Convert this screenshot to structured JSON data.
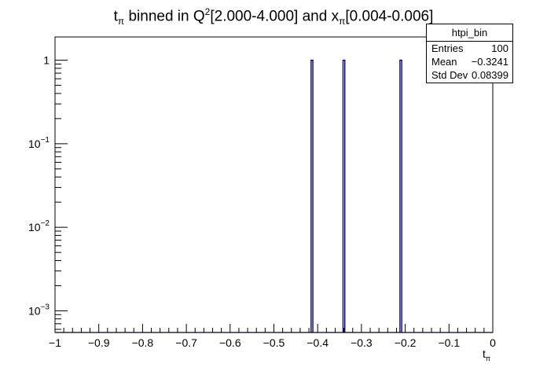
{
  "title": {
    "var": "t",
    "var_sub": "π",
    "mid": " binned in Q",
    "mid_sup": "2",
    "range1": "[2.000-4.000] and x",
    "x_sub": "π",
    "range2": "[0.004-0.006]"
  },
  "stats": {
    "name": "htpi_bin",
    "rows": [
      {
        "label": "Entries",
        "value": "100"
      },
      {
        "label": "Mean",
        "value": "−0.3241"
      },
      {
        "label": "Std Dev",
        "value": "0.08399"
      }
    ]
  },
  "xlabel": {
    "var": "t",
    "sub": "π"
  },
  "chart_data": {
    "type": "bar",
    "title": "t_π binned in Q^2[2.000-4.000] and x_π[0.004-0.006]",
    "xlabel": "t_π",
    "ylabel": "",
    "xlim": [
      -1,
      0
    ],
    "ylim": [
      0.00055,
      1.9
    ],
    "yscale": "log",
    "grid": false,
    "legend": "top-right",
    "colors": {
      "line": "#000080",
      "frame": "#000000"
    },
    "x_ticks": [
      "−1",
      "−0.9",
      "−0.8",
      "−0.7",
      "−0.6",
      "−0.5",
      "−0.4",
      "−0.3",
      "−0.2",
      "−0.1",
      "0"
    ],
    "x_tick_values": [
      -1,
      -0.9,
      -0.8,
      -0.7,
      -0.6,
      -0.5,
      -0.4,
      -0.3,
      -0.2,
      -0.1,
      0
    ],
    "y_ticks": [
      {
        "value": 0.001,
        "base": "10",
        "exp": "−3"
      },
      {
        "value": 0.01,
        "base": "10",
        "exp": "−2"
      },
      {
        "value": 0.1,
        "base": "10",
        "exp": "−1"
      },
      {
        "value": 1,
        "base": "1",
        "exp": ""
      }
    ],
    "bins": [
      {
        "x_low": -0.415,
        "x_high": -0.411,
        "value": 1
      },
      {
        "x_low": -0.342,
        "x_high": -0.338,
        "value": 1
      },
      {
        "x_low": -0.212,
        "x_high": -0.208,
        "value": 1
      }
    ]
  }
}
